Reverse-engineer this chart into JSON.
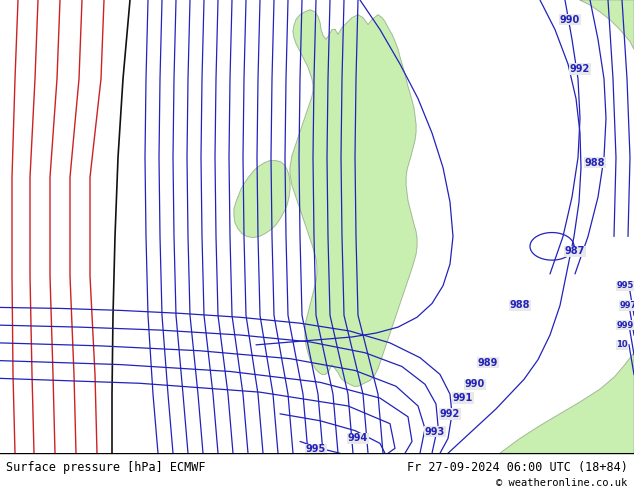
{
  "title_left": "Surface pressure [hPa] ECMWF",
  "title_right": "Fr 27-09-2024 06:00 UTC (18+84)",
  "copyright": "© weatheronline.co.uk",
  "bg_color": "#e8e8e8",
  "land_color": "#c8efb0",
  "land_border": "#a0a8a0",
  "isobar_blue": "#2222bb",
  "isobar_red": "#cc2222",
  "isobar_black": "#111111",
  "figsize": [
    6.34,
    4.9
  ],
  "dpi": 100,
  "label_fontsize": 7
}
